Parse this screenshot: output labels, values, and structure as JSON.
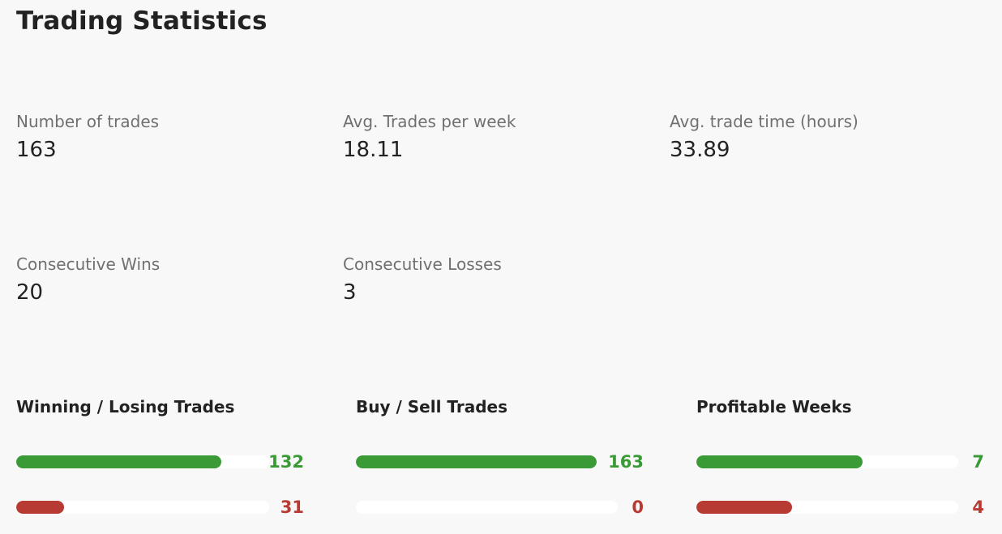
{
  "title": "Trading Statistics",
  "stats": {
    "number_of_trades": {
      "label": "Number of trades",
      "value": "163"
    },
    "avg_trades_per_week": {
      "label": "Avg. Trades per week",
      "value": "18.11"
    },
    "avg_trade_time": {
      "label": "Avg. trade time (hours)",
      "value": "33.89"
    },
    "consecutive_wins": {
      "label": "Consecutive Wins",
      "value": "20"
    },
    "consecutive_losses": {
      "label": "Consecutive Losses",
      "value": "3"
    }
  },
  "colors": {
    "positive": "#3a9a35",
    "negative": "#b83b33",
    "track": "#ffffff",
    "background": "#f8f8f8"
  },
  "bars": {
    "winning_losing": {
      "title": "Winning / Losing Trades",
      "win": {
        "value": "132",
        "fraction": 0.81
      },
      "lose": {
        "value": "31",
        "fraction": 0.19
      }
    },
    "buy_sell": {
      "title": "Buy / Sell Trades",
      "buy": {
        "value": "163",
        "fraction": 1.0
      },
      "sell": {
        "value": "0",
        "fraction": 0.0
      }
    },
    "profitable_weeks": {
      "title": "Profitable Weeks",
      "profitable": {
        "value": "7",
        "fraction": 0.636
      },
      "unprofitable": {
        "value": "4",
        "fraction": 0.364
      }
    }
  }
}
